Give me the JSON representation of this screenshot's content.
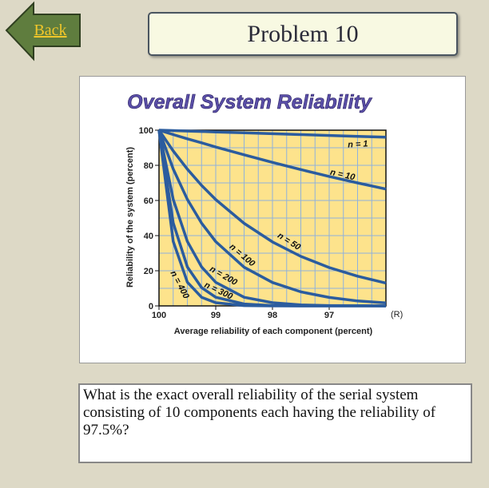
{
  "back_button": {
    "label": "Back"
  },
  "header": {
    "title": "Problem 10"
  },
  "chart_data": {
    "type": "line",
    "title": "Overall System Reliability",
    "x_label": "Average reliability of each component (percent)",
    "y_label": "Reliability of the system (percent)",
    "annotation": "(R)",
    "x": [
      100,
      99.75,
      99.5,
      99.25,
      99,
      98.5,
      98,
      97.5,
      97,
      96.5,
      96
    ],
    "series": [
      {
        "name": "n = 1",
        "color": "#2b5c9e",
        "values": [
          100,
          99.75,
          99.5,
          99.25,
          99,
          98.5,
          98,
          97.5,
          97,
          96.5,
          96
        ]
      },
      {
        "name": "n = 10",
        "color": "#2b5c9e",
        "values": [
          100,
          97.5,
          95.1,
          92.8,
          90.4,
          86.0,
          81.7,
          77.6,
          73.7,
          70.0,
          66.5
        ]
      },
      {
        "name": "n = 50",
        "color": "#2b5c9e",
        "values": [
          100,
          88.2,
          77.8,
          68.6,
          60.5,
          47.0,
          36.4,
          28.2,
          21.8,
          16.9,
          13.0
        ]
      },
      {
        "name": "n = 100",
        "color": "#2b5c9e",
        "values": [
          100,
          77.9,
          60.6,
          47.1,
          36.6,
          22.0,
          13.3,
          8.0,
          4.8,
          2.8,
          1.7
        ]
      },
      {
        "name": "n = 200",
        "color": "#2b5c9e",
        "values": [
          100,
          60.6,
          36.7,
          22.2,
          13.4,
          4.9,
          1.8,
          0.6,
          0.2,
          0.1,
          0
        ]
      },
      {
        "name": "n = 300",
        "color": "#2b5c9e",
        "values": [
          100,
          47.2,
          22.2,
          10.4,
          4.9,
          1.1,
          0.2,
          0,
          0,
          0,
          0
        ]
      },
      {
        "name": "n = 400",
        "color": "#2b5c9e",
        "values": [
          100,
          36.7,
          13.5,
          4.9,
          1.8,
          0.2,
          0,
          0,
          0,
          0,
          0
        ]
      }
    ],
    "xlim": [
      100,
      96
    ],
    "ylim": [
      0,
      100
    ],
    "xticks": [
      100,
      99,
      98,
      97
    ],
    "yticks": [
      0,
      20,
      40,
      60,
      80,
      100
    ],
    "xgrid": [
      99.75,
      99.5,
      99.25,
      99,
      98.75,
      98.5,
      98.25,
      98,
      97.75,
      97.5,
      97.25,
      97,
      96.75,
      96.5,
      96.25,
      96
    ],
    "ygrid": [
      10,
      20,
      30,
      40,
      50,
      60,
      70,
      80,
      90,
      100
    ],
    "grid_color": "#8fb2dc",
    "plot_background": "#fde38c"
  },
  "question": {
    "text": "What is the exact overall reliability of the serial system consisting of 10 components each having the reliability of 97.5%?"
  }
}
